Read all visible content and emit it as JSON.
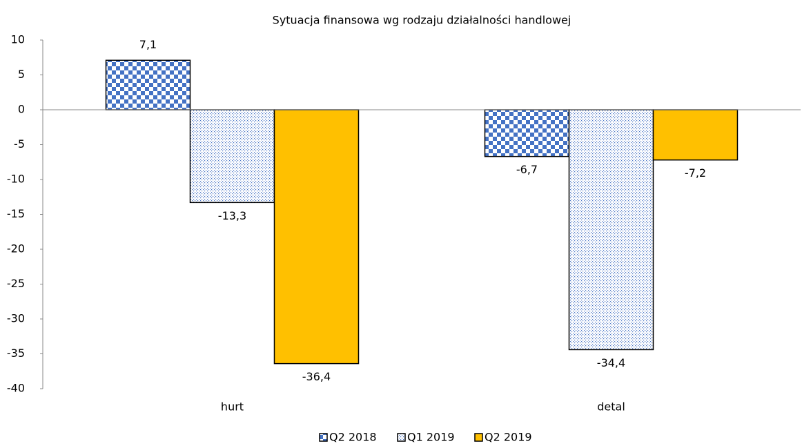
{
  "chart_data": {
    "type": "bar",
    "title": "Sytuacja finansowa wg rodzaju działalności handlowej",
    "categories": [
      "hurt",
      "detal"
    ],
    "series": [
      {
        "name": "Q2 2018",
        "color": "#4472c4",
        "pattern": "checker",
        "values": [
          7.1,
          -6.7
        ],
        "value_labels": [
          "7,1",
          "-6,7"
        ]
      },
      {
        "name": "Q1 2019",
        "color": "#4472c4",
        "pattern": "dots",
        "values": [
          -13.3,
          -34.4
        ],
        "value_labels": [
          "-13,3",
          "-34,4"
        ]
      },
      {
        "name": "Q2 2019",
        "color": "#ffc000",
        "pattern": "solid",
        "values": [
          -36.4,
          -7.2
        ],
        "value_labels": [
          "-36,4",
          "-7,2"
        ]
      }
    ],
    "ylim": [
      -40,
      10
    ],
    "yticks": [
      -40,
      -35,
      -30,
      -25,
      -20,
      -15,
      -10,
      -5,
      0,
      5,
      10
    ],
    "legend": "bottom"
  }
}
